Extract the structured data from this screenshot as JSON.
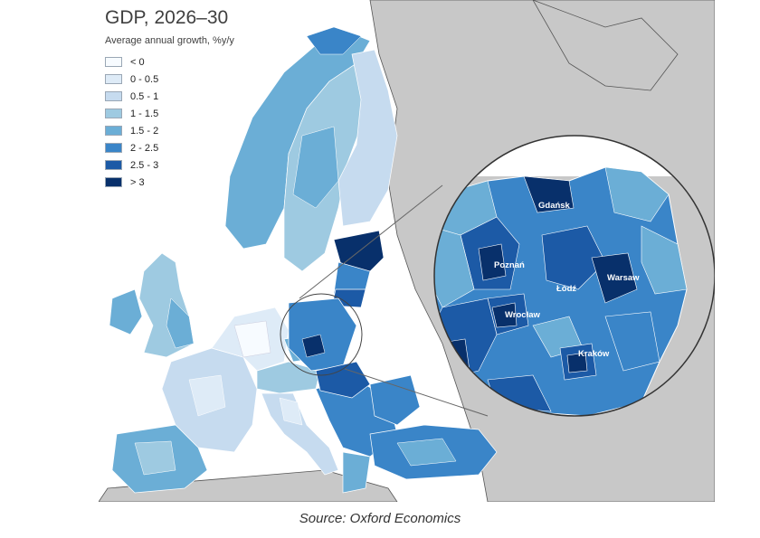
{
  "title": "GDP, 2026–30",
  "subtitle": "Average annual growth, %y/y",
  "legend": [
    {
      "label": "< 0",
      "color": "#f7fbff"
    },
    {
      "label": "0 - 0.5",
      "color": "#deebf7"
    },
    {
      "label": "0.5 - 1",
      "color": "#c6dbef"
    },
    {
      "label": "1 - 1.5",
      "color": "#9ecae1"
    },
    {
      "label": "1.5 - 2",
      "color": "#6baed6"
    },
    {
      "label": "2 - 2.5",
      "color": "#3a85c8"
    },
    {
      "label": "2.5 - 3",
      "color": "#1c5aa6"
    },
    {
      "label": "> 3",
      "color": "#08306b"
    }
  ],
  "cities": {
    "gdansk": "Gdańsk",
    "poznan": "Poznań",
    "warsaw": "Warsaw",
    "lodz": "Łódź",
    "wroclaw": "Wrocław",
    "krakow": "Kraków"
  },
  "source": "Source: Oxford Economics"
}
